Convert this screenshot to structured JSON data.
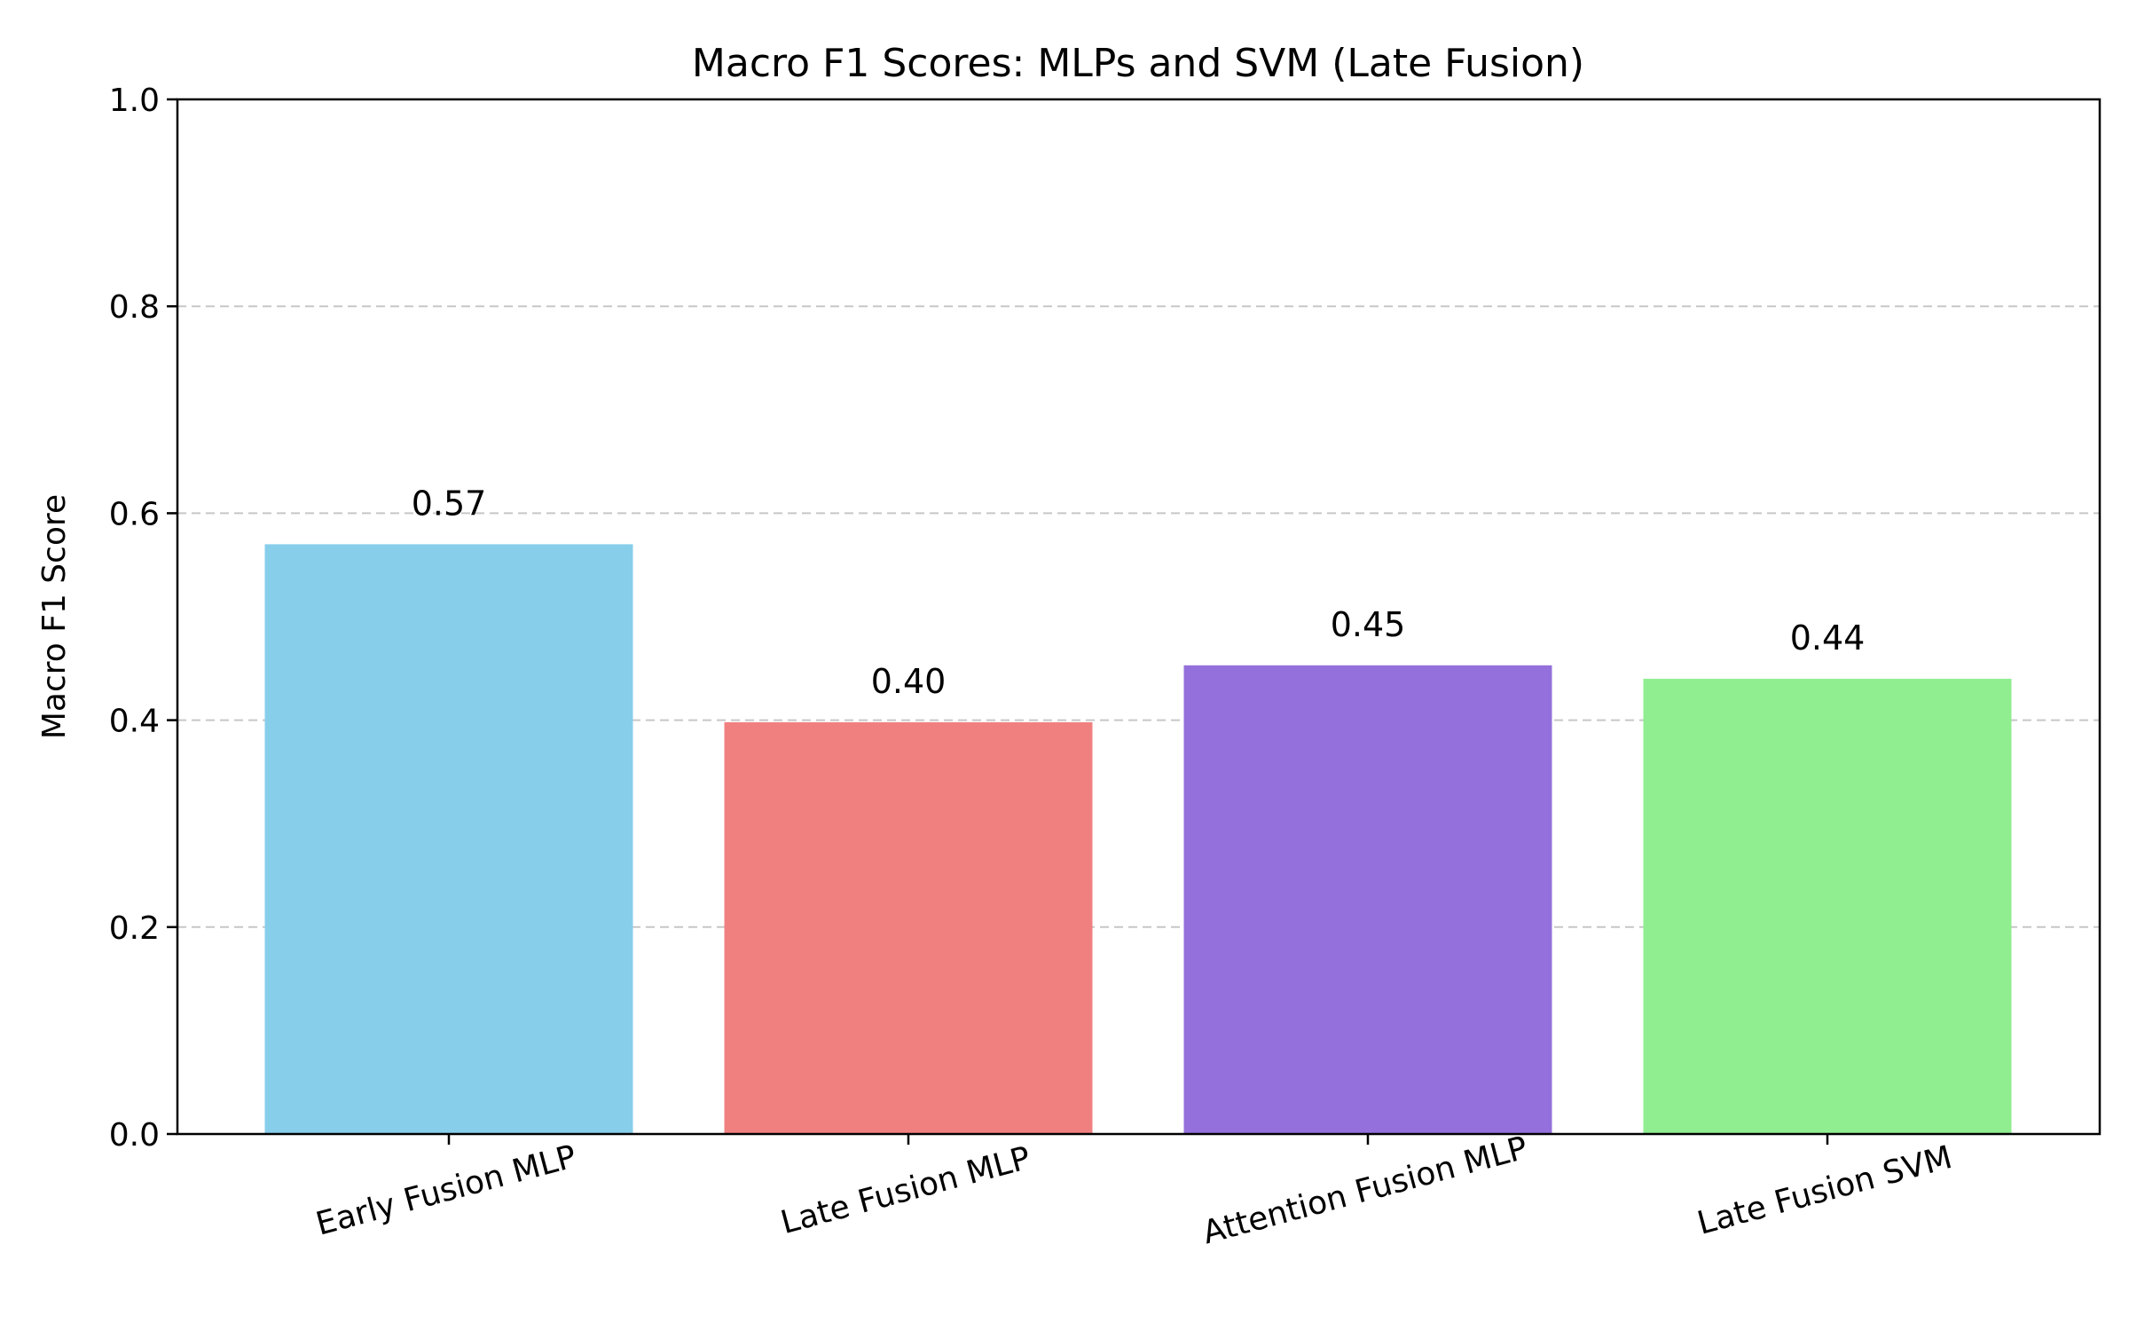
{
  "chart_data": {
    "type": "bar",
    "title": "Macro F1 Scores: MLPs and SVM (Late Fusion)",
    "xlabel": "",
    "ylabel": "Macro F1 Score",
    "ylim": [
      0,
      1.0
    ],
    "yticks": [
      "0.0",
      "0.2",
      "0.4",
      "0.6",
      "0.8",
      "1.0"
    ],
    "grid": "y-dashed",
    "categories": [
      "Early Fusion MLP",
      "Late Fusion MLP",
      "Attention Fusion MLP",
      "Late Fusion SVM"
    ],
    "values": [
      0.57,
      0.398,
      0.453,
      0.44
    ],
    "value_labels": [
      "0.57",
      "0.40",
      "0.45",
      "0.44"
    ],
    "colors": [
      "#87ceeb",
      "#f08080",
      "#9370db",
      "#90ee90"
    ]
  }
}
